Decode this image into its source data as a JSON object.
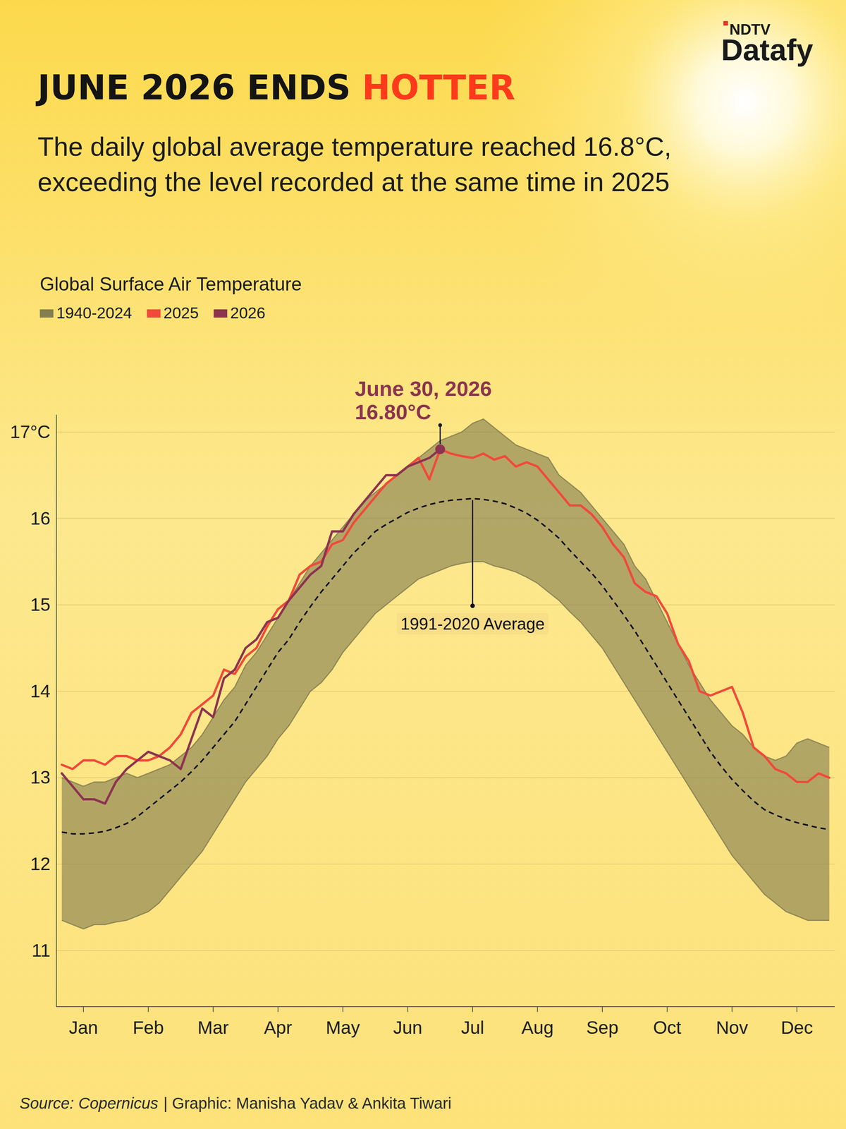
{
  "brand": {
    "line1": "NDTV",
    "line2": "Datafy"
  },
  "chart_data": {
    "type": "line",
    "title": "JUNE 2026 ENDS",
    "title_highlight": "HOTTER",
    "subtitle": "The daily global average temperature reached 16.8°C, exceeding the level recorded at the same time in 2025",
    "legend_title": "Global Surface Air Temperature",
    "legend": "top-left",
    "grid": true,
    "ylim": [
      10.35,
      17.2
    ],
    "yticks": [
      11,
      12,
      13,
      14,
      15,
      16,
      {
        "value": 17,
        "label": "17°C"
      }
    ],
    "categories": [
      null,
      null,
      "Jan",
      null,
      null,
      null,
      null,
      null,
      "Feb",
      null,
      null,
      null,
      null,
      null,
      "Mar",
      null,
      null,
      null,
      null,
      null,
      "Apr",
      null,
      null,
      null,
      null,
      null,
      "May",
      null,
      null,
      null,
      null,
      null,
      "Jun",
      null,
      null,
      null,
      null,
      null,
      "Jul",
      null,
      null,
      null,
      null,
      null,
      "Aug",
      null,
      null,
      null,
      null,
      null,
      "Sep",
      null,
      null,
      null,
      null,
      null,
      "Oct",
      null,
      null,
      null,
      null,
      null,
      "Nov",
      null,
      null,
      null,
      null,
      null,
      "Dec",
      null,
      null,
      null
    ],
    "series": [
      {
        "name": "1940-2024",
        "type": "band",
        "color": "#847e50",
        "values": [
          11.35,
          11.3,
          11.25,
          11.3,
          11.3,
          11.33,
          11.35,
          11.4,
          11.45,
          11.55,
          11.7,
          11.85,
          12.0,
          12.15,
          12.35,
          12.55,
          12.75,
          12.95,
          13.1,
          13.25,
          13.45,
          13.6,
          13.8,
          14.0,
          14.1,
          14.25,
          14.45,
          14.6,
          14.75,
          14.9,
          15.0,
          15.1,
          15.2,
          15.3,
          15.35,
          15.4,
          15.45,
          15.48,
          15.5,
          15.5,
          15.45,
          15.42,
          15.38,
          15.32,
          15.25,
          15.15,
          15.05,
          14.92,
          14.8,
          14.65,
          14.5,
          14.3,
          14.1,
          13.9,
          13.7,
          13.5,
          13.3,
          13.1,
          12.9,
          12.7,
          12.5,
          12.3,
          12.1,
          11.95,
          11.8,
          11.65,
          11.55,
          11.45,
          11.4,
          11.35,
          11.35,
          11.35
        ],
        "upper": [
          13.0,
          12.95,
          12.9,
          12.95,
          12.95,
          13.0,
          13.05,
          13.0,
          13.05,
          13.1,
          13.15,
          13.25,
          13.35,
          13.5,
          13.7,
          13.9,
          14.05,
          14.3,
          14.45,
          14.65,
          14.85,
          15.05,
          15.25,
          15.45,
          15.6,
          15.75,
          15.9,
          16.05,
          16.2,
          16.3,
          16.4,
          16.5,
          16.6,
          16.7,
          16.8,
          16.9,
          16.95,
          17.0,
          17.1,
          17.15,
          17.05,
          16.95,
          16.85,
          16.8,
          16.75,
          16.7,
          16.5,
          16.4,
          16.3,
          16.15,
          16.0,
          15.85,
          15.7,
          15.45,
          15.3,
          15.05,
          14.8,
          14.55,
          14.3,
          14.1,
          13.9,
          13.75,
          13.6,
          13.5,
          13.35,
          13.25,
          13.2,
          13.25,
          13.4,
          13.45,
          13.4,
          13.35
        ]
      },
      {
        "name": "2025",
        "color": "#f2493a",
        "values": [
          13.15,
          13.1,
          13.2,
          13.2,
          13.15,
          13.25,
          13.25,
          13.2,
          13.2,
          13.25,
          13.35,
          13.5,
          13.75,
          13.85,
          13.95,
          14.25,
          14.2,
          14.4,
          14.5,
          14.75,
          14.95,
          15.05,
          15.35,
          15.45,
          15.5,
          15.7,
          15.75,
          15.95,
          16.1,
          16.25,
          16.4,
          16.5,
          16.6,
          16.7,
          16.45,
          16.8,
          16.75,
          16.72,
          16.7,
          16.75,
          16.68,
          16.72,
          16.6,
          16.65,
          16.6,
          16.45,
          16.3,
          16.15,
          16.15,
          16.05,
          15.9,
          15.7,
          15.55,
          15.25,
          15.15,
          15.1,
          14.9,
          14.55,
          14.35,
          14.0,
          13.95,
          14.0,
          14.05,
          13.75,
          13.35,
          13.25,
          13.1,
          13.05,
          12.95,
          12.95,
          13.05,
          13.0
        ]
      },
      {
        "name": "2026",
        "color": "#8c3350",
        "values": [
          13.05,
          12.9,
          12.75,
          12.75,
          12.7,
          12.95,
          13.1,
          13.2,
          13.3,
          13.25,
          13.2,
          13.1,
          13.45,
          13.8,
          13.7,
          14.15,
          14.25,
          14.5,
          14.6,
          14.8,
          14.85,
          15.05,
          15.2,
          15.35,
          15.45,
          15.85,
          15.85,
          16.05,
          16.2,
          16.35,
          16.5,
          16.5,
          16.6,
          16.65,
          16.7,
          16.8,
          null,
          null,
          null,
          null,
          null,
          null,
          null,
          null,
          null,
          null,
          null,
          null,
          null,
          null,
          null,
          null,
          null,
          null,
          null,
          null,
          null,
          null,
          null,
          null,
          null,
          null,
          null,
          null,
          null,
          null,
          null,
          null,
          null,
          null,
          null,
          null
        ]
      }
    ],
    "reference": {
      "name": "1991-2020 Average",
      "color": "#111111",
      "line_style": "dashed",
      "values": [
        12.37,
        12.35,
        12.35,
        12.36,
        12.38,
        12.42,
        12.47,
        12.55,
        12.65,
        12.75,
        12.85,
        12.95,
        13.07,
        13.2,
        13.35,
        13.5,
        13.65,
        13.85,
        14.05,
        14.25,
        14.45,
        14.6,
        14.8,
        14.98,
        15.15,
        15.3,
        15.45,
        15.6,
        15.72,
        15.85,
        15.93,
        16.0,
        16.07,
        16.12,
        16.16,
        16.19,
        16.21,
        16.22,
        16.23,
        16.22,
        16.2,
        16.17,
        16.12,
        16.06,
        15.98,
        15.88,
        15.77,
        15.63,
        15.5,
        15.37,
        15.22,
        15.05,
        14.88,
        14.7,
        14.5,
        14.3,
        14.1,
        13.9,
        13.7,
        13.5,
        13.3,
        13.13,
        12.98,
        12.85,
        12.73,
        12.63,
        12.57,
        12.52,
        12.48,
        12.45,
        12.42,
        12.4
      ]
    },
    "annotation": {
      "lines": [
        "June 30, 2026",
        "16.80°C"
      ]
    },
    "source": "Source: Copernicus",
    "credit": "| Graphic: Manisha Yadav & Ankita Tiwari"
  }
}
